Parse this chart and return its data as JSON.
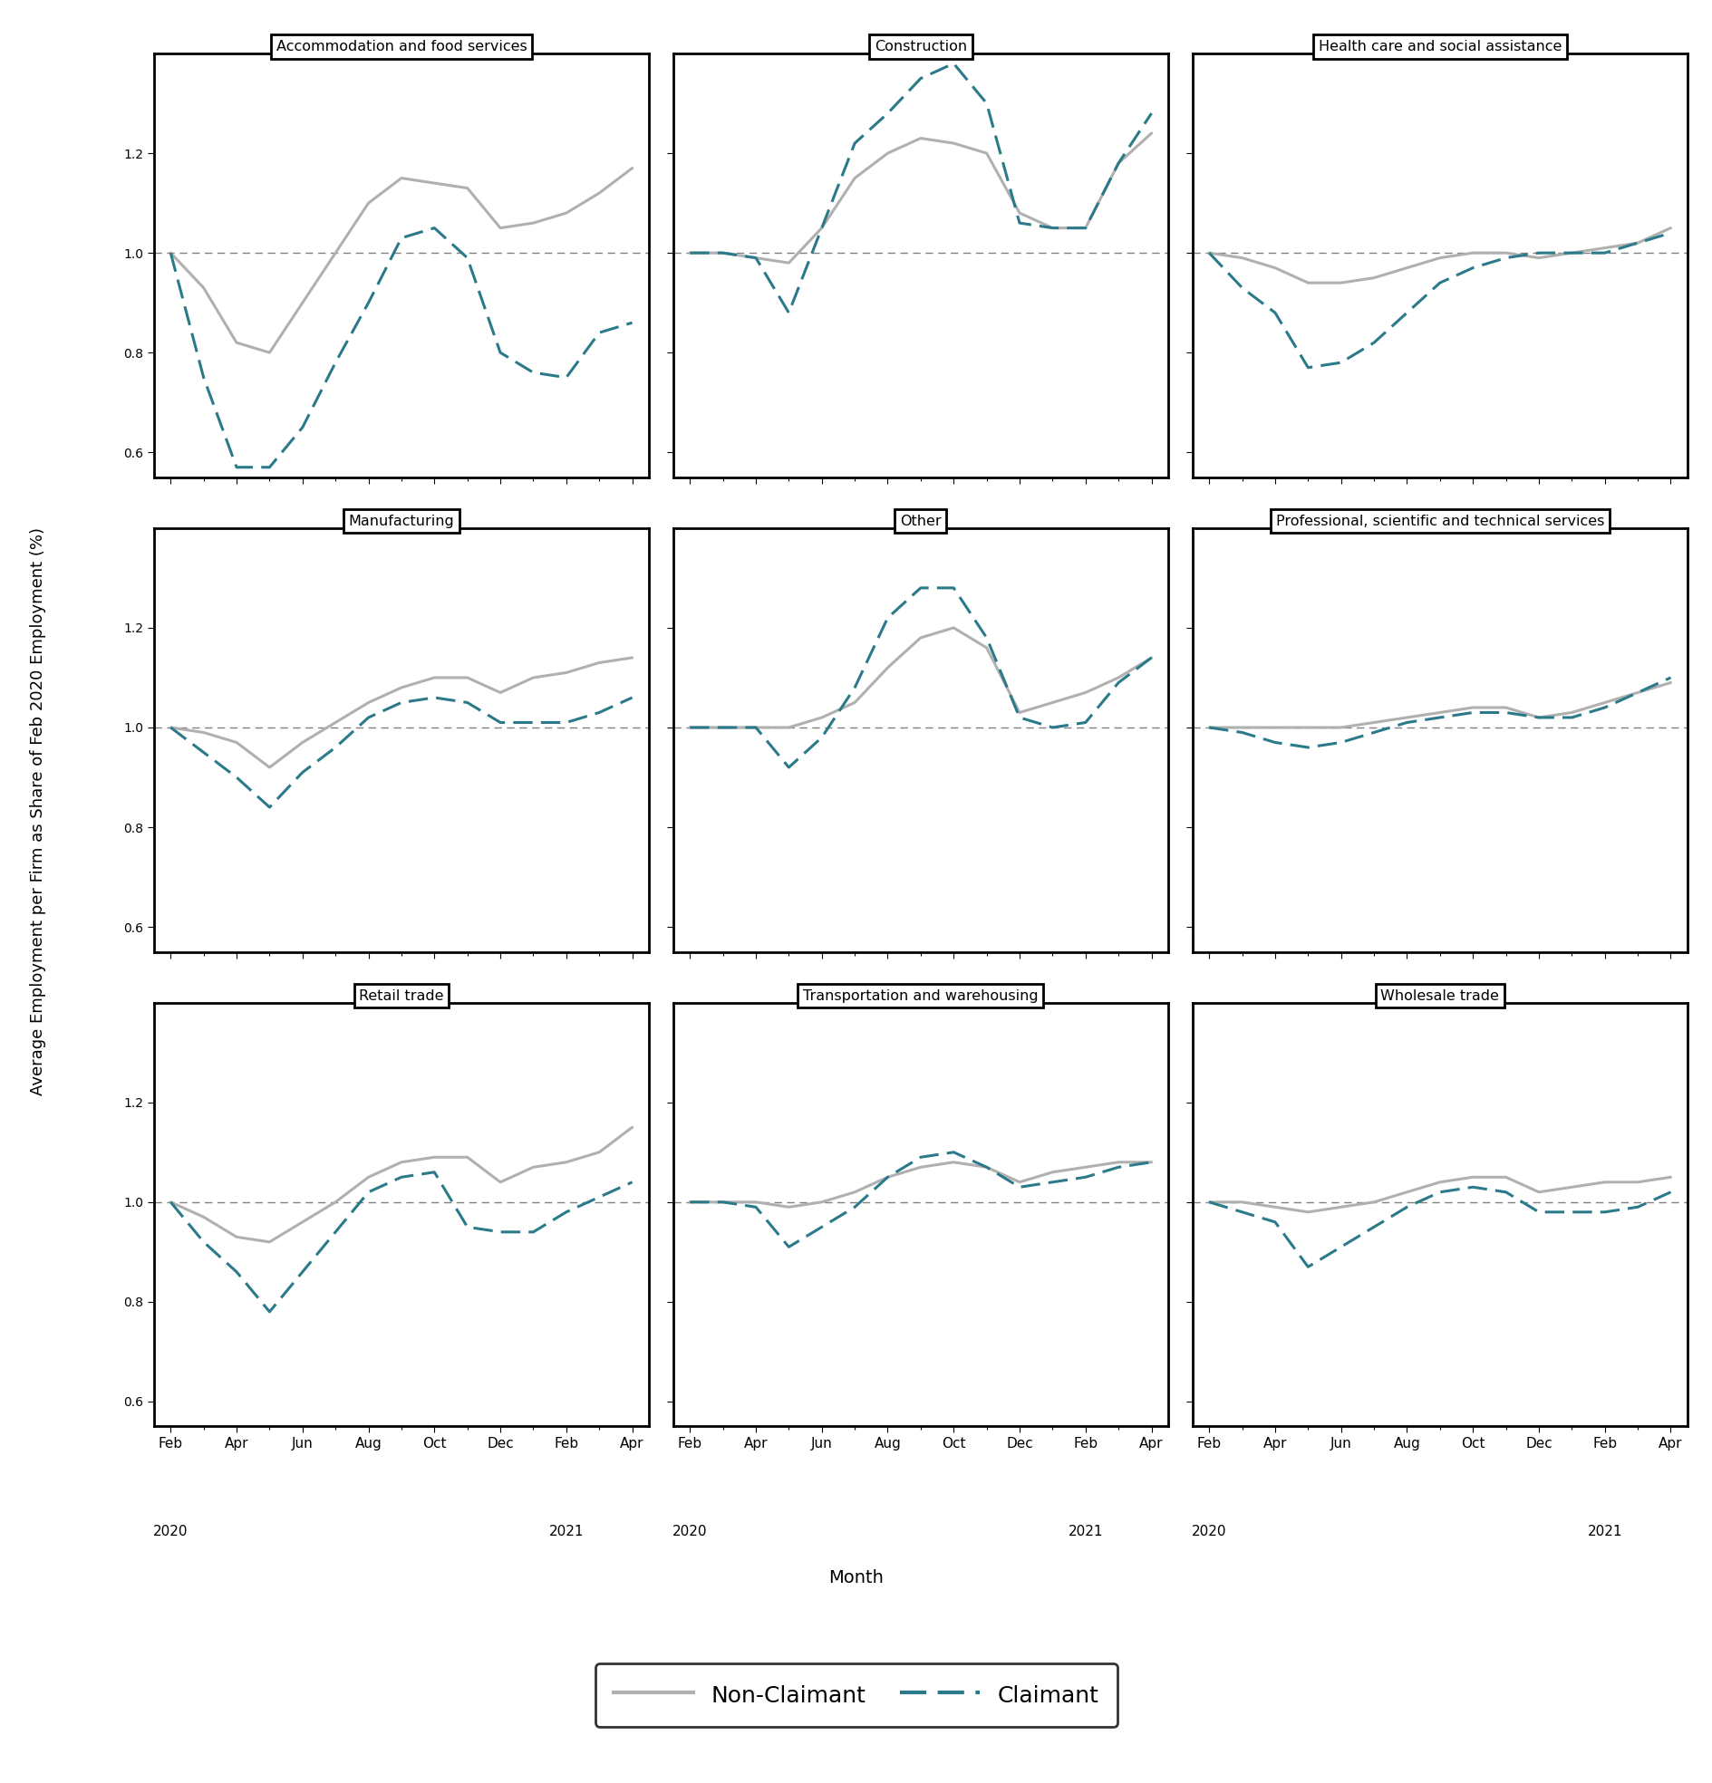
{
  "panels": [
    {
      "title": "Accommodation and food services",
      "non_claimant": [
        1.0,
        0.93,
        0.82,
        0.8,
        0.9,
        1.0,
        1.1,
        1.15,
        1.14,
        1.13,
        1.05,
        1.06,
        1.08,
        1.12,
        1.17
      ],
      "claimant": [
        1.0,
        0.75,
        0.57,
        0.57,
        0.65,
        0.78,
        0.9,
        1.03,
        1.05,
        0.99,
        0.8,
        0.76,
        0.75,
        0.84,
        0.86
      ]
    },
    {
      "title": "Construction",
      "non_claimant": [
        1.0,
        1.0,
        0.99,
        0.98,
        1.05,
        1.15,
        1.2,
        1.23,
        1.22,
        1.2,
        1.08,
        1.05,
        1.05,
        1.18,
        1.24
      ],
      "claimant": [
        1.0,
        1.0,
        0.99,
        0.88,
        1.05,
        1.22,
        1.28,
        1.35,
        1.38,
        1.3,
        1.06,
        1.05,
        1.05,
        1.18,
        1.28
      ]
    },
    {
      "title": "Health care and social assistance",
      "non_claimant": [
        1.0,
        0.99,
        0.97,
        0.94,
        0.94,
        0.95,
        0.97,
        0.99,
        1.0,
        1.0,
        0.99,
        1.0,
        1.01,
        1.02,
        1.05
      ],
      "claimant": [
        1.0,
        0.93,
        0.88,
        0.77,
        0.78,
        0.82,
        0.88,
        0.94,
        0.97,
        0.99,
        1.0,
        1.0,
        1.0,
        1.02,
        1.04
      ]
    },
    {
      "title": "Manufacturing",
      "non_claimant": [
        1.0,
        0.99,
        0.97,
        0.92,
        0.97,
        1.01,
        1.05,
        1.08,
        1.1,
        1.1,
        1.07,
        1.1,
        1.11,
        1.13,
        1.14
      ],
      "claimant": [
        1.0,
        0.95,
        0.9,
        0.84,
        0.91,
        0.96,
        1.02,
        1.05,
        1.06,
        1.05,
        1.01,
        1.01,
        1.01,
        1.03,
        1.06
      ]
    },
    {
      "title": "Other",
      "non_claimant": [
        1.0,
        1.0,
        1.0,
        1.0,
        1.02,
        1.05,
        1.12,
        1.18,
        1.2,
        1.16,
        1.03,
        1.05,
        1.07,
        1.1,
        1.14
      ],
      "claimant": [
        1.0,
        1.0,
        1.0,
        0.92,
        0.98,
        1.08,
        1.22,
        1.28,
        1.28,
        1.18,
        1.02,
        1.0,
        1.01,
        1.09,
        1.14
      ]
    },
    {
      "title": "Professional, scientific and technical services",
      "non_claimant": [
        1.0,
        1.0,
        1.0,
        1.0,
        1.0,
        1.01,
        1.02,
        1.03,
        1.04,
        1.04,
        1.02,
        1.03,
        1.05,
        1.07,
        1.09
      ],
      "claimant": [
        1.0,
        0.99,
        0.97,
        0.96,
        0.97,
        0.99,
        1.01,
        1.02,
        1.03,
        1.03,
        1.02,
        1.02,
        1.04,
        1.07,
        1.1
      ]
    },
    {
      "title": "Retail trade",
      "non_claimant": [
        1.0,
        0.97,
        0.93,
        0.92,
        0.96,
        1.0,
        1.05,
        1.08,
        1.09,
        1.09,
        1.04,
        1.07,
        1.08,
        1.1,
        1.15
      ],
      "claimant": [
        1.0,
        0.92,
        0.86,
        0.78,
        0.86,
        0.94,
        1.02,
        1.05,
        1.06,
        0.95,
        0.94,
        0.94,
        0.98,
        1.01,
        1.04
      ]
    },
    {
      "title": "Transportation and warehousing",
      "non_claimant": [
        1.0,
        1.0,
        1.0,
        0.99,
        1.0,
        1.02,
        1.05,
        1.07,
        1.08,
        1.07,
        1.04,
        1.06,
        1.07,
        1.08,
        1.08
      ],
      "claimant": [
        1.0,
        1.0,
        0.99,
        0.91,
        0.95,
        0.99,
        1.05,
        1.09,
        1.1,
        1.07,
        1.03,
        1.04,
        1.05,
        1.07,
        1.08
      ]
    },
    {
      "title": "Wholesale trade",
      "non_claimant": [
        1.0,
        1.0,
        0.99,
        0.98,
        0.99,
        1.0,
        1.02,
        1.04,
        1.05,
        1.05,
        1.02,
        1.03,
        1.04,
        1.04,
        1.05
      ],
      "claimant": [
        1.0,
        0.98,
        0.96,
        0.87,
        0.91,
        0.95,
        0.99,
        1.02,
        1.03,
        1.02,
        0.98,
        0.98,
        0.98,
        0.99,
        1.02
      ]
    }
  ],
  "ylim": [
    0.55,
    1.4
  ],
  "yticks": [
    0.6,
    0.8,
    1.0,
    1.2
  ],
  "non_claimant_color": "#b0b0b0",
  "claimant_color": "#2a7a8a",
  "ylabel": "Average Employment per Firm as Share of Feb 2020 Employment (%)",
  "xlabel": "Month",
  "legend_nc": "Non-Claimant",
  "legend_c": "Claimant"
}
